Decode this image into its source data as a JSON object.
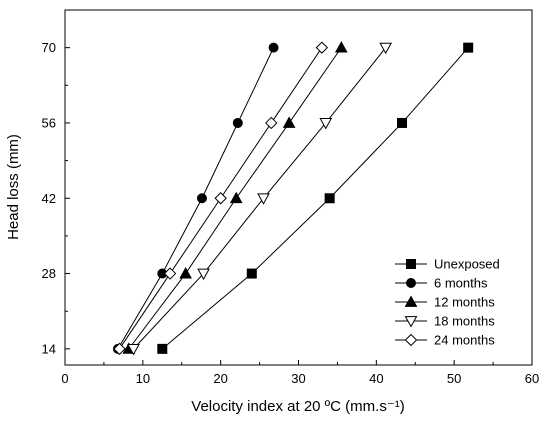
{
  "chart_data": {
    "type": "line",
    "title": "",
    "xlabel": "Velocity index at 20 ºC (mm.s⁻¹)",
    "ylabel": "Head loss (mm)",
    "xlim": [
      0,
      60
    ],
    "ylim": [
      11,
      77
    ],
    "xticks": [
      0,
      10,
      20,
      30,
      40,
      50,
      60
    ],
    "yticks": [
      14,
      28,
      42,
      56,
      70
    ],
    "grid": false,
    "legend_position": "bottom-right",
    "series": [
      {
        "name": "Unexposed",
        "marker": "square-filled",
        "points": [
          [
            12.5,
            14
          ],
          [
            24.0,
            28
          ],
          [
            34.0,
            42
          ],
          [
            43.3,
            56
          ],
          [
            51.8,
            70
          ]
        ]
      },
      {
        "name": "6 months",
        "marker": "circle-filled",
        "points": [
          [
            6.8,
            14
          ],
          [
            12.5,
            28
          ],
          [
            17.6,
            42
          ],
          [
            22.2,
            56
          ],
          [
            26.8,
            70
          ]
        ]
      },
      {
        "name": "12 months",
        "marker": "triangle-up-filled",
        "points": [
          [
            8.2,
            14
          ],
          [
            15.5,
            28
          ],
          [
            22.0,
            42
          ],
          [
            28.8,
            56
          ],
          [
            35.5,
            70
          ]
        ]
      },
      {
        "name": "18 months",
        "marker": "triangle-down-open",
        "points": [
          [
            8.8,
            14
          ],
          [
            17.8,
            28
          ],
          [
            25.5,
            42
          ],
          [
            33.5,
            56
          ],
          [
            41.2,
            70
          ]
        ]
      },
      {
        "name": "24 months",
        "marker": "diamond-open",
        "points": [
          [
            7.0,
            14
          ],
          [
            13.5,
            28
          ],
          [
            20.0,
            42
          ],
          [
            26.5,
            56
          ],
          [
            33.0,
            70
          ]
        ]
      }
    ]
  }
}
